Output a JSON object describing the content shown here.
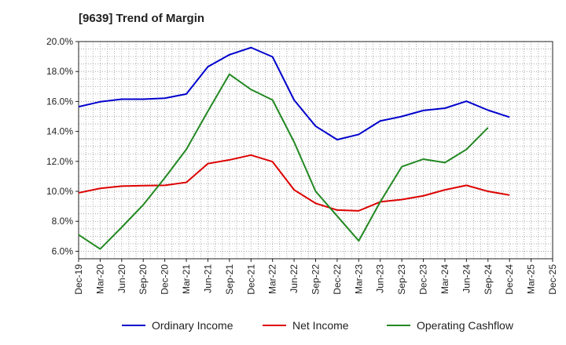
{
  "chart_data": {
    "type": "line",
    "title": "[9639]  Trend of Margin",
    "xlabel": "",
    "ylabel": "",
    "ylim": [
      5.5,
      20.0
    ],
    "yticks": [
      6,
      8,
      10,
      12,
      14,
      16,
      18,
      20
    ],
    "ytick_labels": [
      "6.0%",
      "8.0%",
      "10.0%",
      "12.0%",
      "14.0%",
      "16.0%",
      "18.0%",
      "20.0%"
    ],
    "x_tick_labels": [
      "Dec-19",
      "Mar-20",
      "Jun-20",
      "Sep-20",
      "Dec-20",
      "Mar-21",
      "Jun-21",
      "Sep-21",
      "Dec-21",
      "Mar-22",
      "Jun-22",
      "Sep-22",
      "Dec-22",
      "Mar-23",
      "Jun-23",
      "Sep-23",
      "Dec-23",
      "Mar-24",
      "Jun-24",
      "Sep-24",
      "Dec-24",
      "Mar-25",
      "Dec-25"
    ],
    "grid": true,
    "legend_position": "bottom",
    "series": [
      {
        "name": "Ordinary Income",
        "color": "#0000cc",
        "values": [
          15.65,
          15.98,
          16.15,
          16.15,
          16.22,
          16.5,
          18.32,
          19.12,
          19.6,
          18.98,
          16.1,
          14.35,
          13.45,
          13.8,
          14.7,
          15.0,
          15.4,
          15.55,
          16.02,
          15.42,
          14.95,
          null,
          null
        ]
      },
      {
        "name": "Net Income",
        "color": "#dd0000",
        "values": [
          9.9,
          10.2,
          10.35,
          10.38,
          10.4,
          10.6,
          11.85,
          12.1,
          12.42,
          11.98,
          10.1,
          9.2,
          8.75,
          8.7,
          9.3,
          9.45,
          9.7,
          10.1,
          10.4,
          10.0,
          9.75,
          null,
          null
        ]
      },
      {
        "name": "Operating Cashflow",
        "color": "#228822",
        "values": [
          7.1,
          6.15,
          7.6,
          9.1,
          10.9,
          12.8,
          15.35,
          17.82,
          16.8,
          16.1,
          13.3,
          10.0,
          8.35,
          6.7,
          9.3,
          11.65,
          12.15,
          11.92,
          12.8,
          14.25,
          null,
          null,
          null
        ]
      }
    ]
  }
}
